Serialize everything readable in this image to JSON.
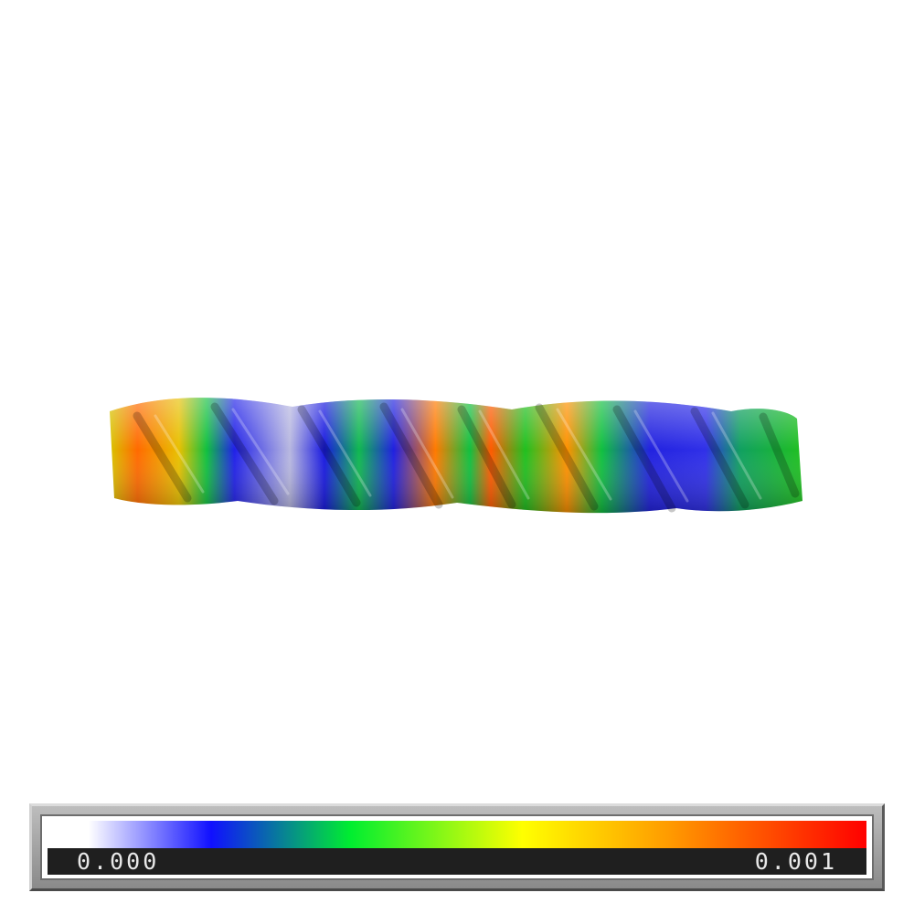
{
  "viewer": {
    "background": "#ffffff",
    "structure_icon": "dna-double-helix-surface-icon"
  },
  "colorbar": {
    "min_label": "0.000",
    "max_label": "0.001",
    "colors": [
      "#ffffff",
      "#1010ff",
      "#00ee30",
      "#ffff00",
      "#ff9a00",
      "#ff0000"
    ]
  }
}
